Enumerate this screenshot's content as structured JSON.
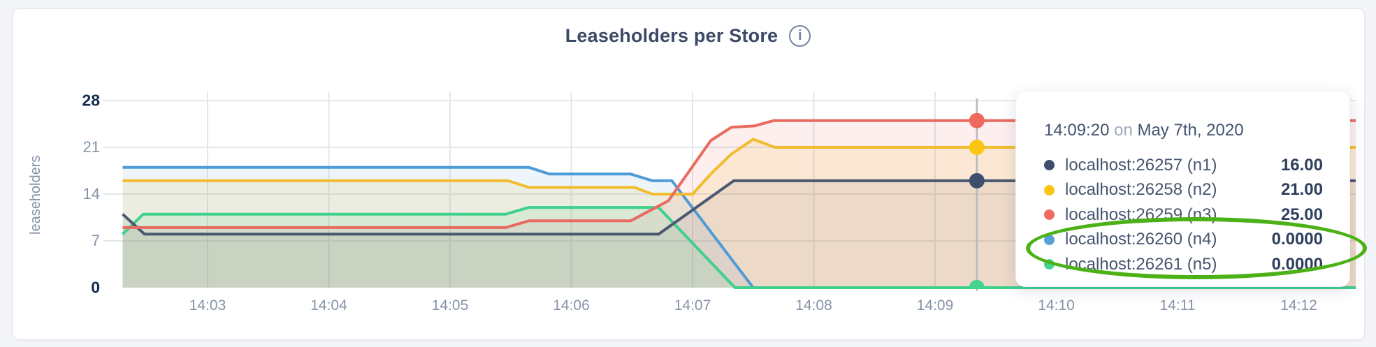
{
  "page": {
    "title": "Leaseholders per Store",
    "info_icon_glyph": "i"
  },
  "chart_data": {
    "type": "area",
    "title": "Leaseholders per Store",
    "xlabel": "",
    "ylabel": "leaseholders",
    "ylim": [
      0,
      28
    ],
    "grid": true,
    "legend_position": "tooltip",
    "x_unit": "minutes after 14:00 on May 7th, 2020",
    "yticks": [
      {
        "value": 0,
        "label": "0",
        "bold": true
      },
      {
        "value": 7,
        "label": "7",
        "bold": false
      },
      {
        "value": 14,
        "label": "14",
        "bold": false
      },
      {
        "value": 21,
        "label": "21",
        "bold": false
      },
      {
        "value": 28,
        "label": "28",
        "bold": true
      }
    ],
    "xticks": [
      {
        "minute": 3,
        "label": "14:03"
      },
      {
        "minute": 4,
        "label": "14:04"
      },
      {
        "minute": 5,
        "label": "14:05"
      },
      {
        "minute": 6,
        "label": "14:06"
      },
      {
        "minute": 7,
        "label": "14:07"
      },
      {
        "minute": 8,
        "label": "14:08"
      },
      {
        "minute": 9,
        "label": "14:09"
      },
      {
        "minute": 10,
        "label": "14:10"
      },
      {
        "minute": 11,
        "label": "14:11"
      },
      {
        "minute": 12,
        "label": "14:12"
      }
    ],
    "series": [
      {
        "name": "localhost:26257 (n1)",
        "color": "#4a5871",
        "fill_opacity": 0.1,
        "points": [
          [
            2.3,
            11
          ],
          [
            2.48,
            8
          ],
          [
            6.72,
            8
          ],
          [
            7.34,
            16
          ],
          [
            12.47,
            16
          ]
        ]
      },
      {
        "name": "localhost:26258 (n2)",
        "color": "#f1bd2e",
        "fill_opacity": 0.14,
        "points": [
          [
            2.3,
            16
          ],
          [
            5.48,
            16
          ],
          [
            5.65,
            15
          ],
          [
            6.52,
            15
          ],
          [
            6.67,
            14
          ],
          [
            7.0,
            14
          ],
          [
            7.15,
            17
          ],
          [
            7.32,
            20
          ],
          [
            7.5,
            22.2
          ],
          [
            7.68,
            21
          ],
          [
            12.47,
            21
          ]
        ]
      },
      {
        "name": "localhost:26259 (n3)",
        "color": "#e96b60",
        "fill_opacity": 0.11,
        "points": [
          [
            2.3,
            9
          ],
          [
            5.46,
            9
          ],
          [
            5.65,
            10
          ],
          [
            6.49,
            10
          ],
          [
            6.8,
            13
          ],
          [
            7.15,
            22
          ],
          [
            7.32,
            24
          ],
          [
            7.51,
            24.2
          ],
          [
            7.67,
            25
          ],
          [
            12.47,
            25
          ]
        ]
      },
      {
        "name": "localhost:26260 (n4)",
        "color": "#4f9bd5",
        "fill_opacity": 0.1,
        "points": [
          [
            2.3,
            18
          ],
          [
            5.65,
            18
          ],
          [
            5.82,
            17
          ],
          [
            6.49,
            17
          ],
          [
            6.67,
            16
          ],
          [
            6.83,
            16
          ],
          [
            7.5,
            0
          ],
          [
            12.47,
            0
          ]
        ]
      },
      {
        "name": "localhost:26261 (n5)",
        "color": "#3fd08d",
        "fill_opacity": 0.11,
        "points": [
          [
            2.3,
            8
          ],
          [
            2.47,
            11
          ],
          [
            5.46,
            11
          ],
          [
            5.65,
            12
          ],
          [
            6.72,
            12
          ],
          [
            7.35,
            0
          ],
          [
            12.47,
            0
          ]
        ]
      }
    ],
    "hover": {
      "time_label": "14:09:20",
      "time_minutes": 9.345,
      "values": [
        16,
        21,
        25,
        0,
        0
      ]
    }
  },
  "tooltip": {
    "time": "14:09:20",
    "on_word": "on",
    "date": "May 7th, 2020",
    "rows": [
      {
        "name": "localhost:26257 (n1)",
        "value": "16.00",
        "color": "#3d4f6d"
      },
      {
        "name": "localhost:26258 (n2)",
        "value": "21.00",
        "color": "#fdc513"
      },
      {
        "name": "localhost:26259 (n3)",
        "value": "25.00",
        "color": "#ee6a5f"
      },
      {
        "name": "localhost:26260 (n4)",
        "value": "0.0000",
        "color": "#57a0d8"
      },
      {
        "name": "localhost:26261 (n5)",
        "value": "0.0000",
        "color": "#44d48f"
      }
    ],
    "highlight_annotation_rows": [
      3,
      4
    ]
  },
  "annotation": {
    "shape": "ellipse",
    "color": "#4cb117"
  },
  "colors": {
    "grid": "#e3e6eb",
    "hover_line": "#b4bac2",
    "title_text": "#3c4a66",
    "tick_gray": "#8593a8",
    "tick_dark": "#122b50",
    "card_bg": "#ffffff",
    "page_bg": "#f3f4f7"
  }
}
